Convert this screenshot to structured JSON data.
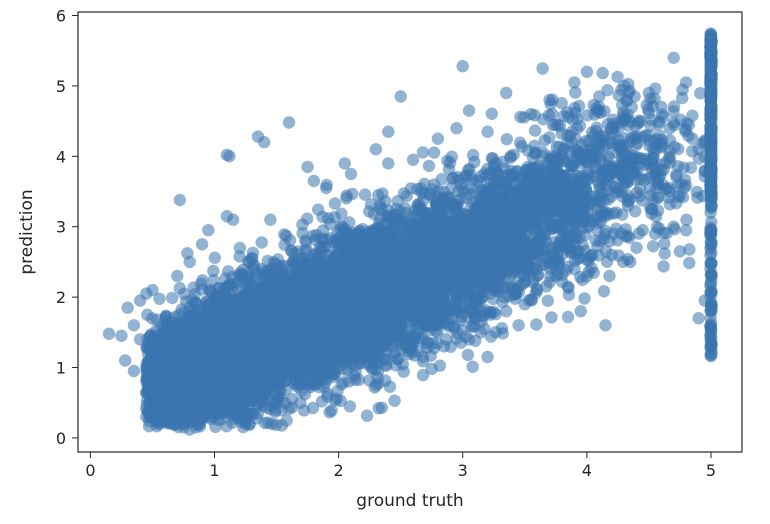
{
  "chart_data": {
    "type": "scatter",
    "title": "",
    "xlabel": "ground truth",
    "ylabel": "prediction",
    "xlim": [
      -0.1,
      5.25
    ],
    "ylim": [
      -0.2,
      6.05
    ],
    "xticks": [
      0,
      1,
      2,
      3,
      4,
      5
    ],
    "yticks": [
      0,
      1,
      2,
      3,
      4,
      5,
      6
    ],
    "grid": false,
    "legend": "none",
    "point_color": "#3a75af",
    "point_alpha": 0.55,
    "series": [
      {
        "points": [
          [
            0.15,
            1.48
          ],
          [
            0.25,
            1.45
          ],
          [
            0.3,
            1.85
          ],
          [
            0.28,
            1.1
          ],
          [
            0.35,
            1.6
          ],
          [
            0.35,
            0.95
          ],
          [
            0.4,
            1.95
          ],
          [
            0.45,
            2.05
          ],
          [
            0.5,
            2.1
          ],
          [
            0.4,
            1.4
          ],
          [
            0.55,
            0.3
          ],
          [
            0.6,
            0.25
          ],
          [
            0.62,
            1.6
          ],
          [
            0.7,
            0.2
          ],
          [
            0.75,
            0.2
          ],
          [
            0.8,
            0.12
          ],
          [
            0.85,
            0.15
          ],
          [
            1.25,
            0.2
          ],
          [
            0.72,
            3.38
          ],
          [
            0.7,
            2.3
          ],
          [
            0.8,
            2.5
          ],
          [
            0.9,
            2.75
          ],
          [
            0.95,
            2.95
          ],
          [
            1.1,
            3.15
          ],
          [
            1.1,
            4.02
          ],
          [
            1.12,
            4.0
          ],
          [
            1.15,
            3.1
          ],
          [
            1.3,
            2.55
          ],
          [
            1.35,
            4.28
          ],
          [
            1.4,
            4.2
          ],
          [
            1.45,
            3.1
          ],
          [
            1.6,
            4.48
          ],
          [
            1.75,
            3.85
          ],
          [
            1.8,
            3.65
          ],
          [
            1.9,
            3.55
          ],
          [
            2.05,
            3.9
          ],
          [
            2.1,
            3.75
          ],
          [
            2.3,
            4.1
          ],
          [
            2.4,
            3.9
          ],
          [
            2.4,
            4.35
          ],
          [
            2.5,
            4.85
          ],
          [
            2.6,
            3.95
          ],
          [
            2.8,
            4.25
          ],
          [
            2.95,
            4.4
          ],
          [
            3.0,
            5.28
          ],
          [
            3.05,
            4.65
          ],
          [
            3.2,
            4.35
          ],
          [
            3.35,
            4.9
          ],
          [
            3.55,
            4.6
          ],
          [
            3.7,
            4.8
          ],
          [
            3.9,
            5.05
          ],
          [
            4.0,
            5.2
          ],
          [
            4.1,
            4.85
          ],
          [
            4.2,
            4.4
          ],
          [
            4.3,
            5.0
          ],
          [
            4.5,
            4.9
          ],
          [
            4.6,
            4.7
          ],
          [
            4.7,
            5.4
          ],
          [
            4.8,
            5.05
          ],
          [
            4.85,
            4.25
          ],
          [
            2.3,
            0.75
          ],
          [
            2.75,
            0.98
          ],
          [
            2.85,
            1.3
          ],
          [
            3.05,
            1.4
          ],
          [
            3.1,
            1.7
          ],
          [
            3.2,
            1.15
          ],
          [
            3.35,
            1.8
          ],
          [
            3.45,
            1.6
          ],
          [
            3.5,
            1.9
          ],
          [
            3.6,
            2.1
          ],
          [
            3.75,
            2.3
          ],
          [
            3.9,
            2.4
          ],
          [
            3.95,
            1.8
          ],
          [
            4.15,
            1.6
          ],
          [
            4.2,
            2.6
          ],
          [
            4.35,
            2.5
          ],
          [
            4.4,
            2.7
          ],
          [
            4.45,
            2.95
          ],
          [
            4.55,
            2.9
          ],
          [
            4.7,
            3.0
          ],
          [
            4.75,
            2.65
          ],
          [
            4.8,
            2.95
          ],
          [
            4.9,
            1.7
          ],
          [
            4.95,
            1.95
          ],
          [
            1.4,
            0.6
          ],
          [
            1.7,
            0.8
          ],
          [
            1.9,
            0.9
          ],
          [
            2.0,
            1.0
          ],
          [
            1.0,
            0.35
          ],
          [
            1.2,
            0.45
          ],
          [
            1.5,
            0.55
          ],
          [
            2.5,
            1.4
          ],
          [
            2.2,
            1.2
          ],
          [
            3.8,
            2.6
          ],
          [
            4.3,
            3.6
          ],
          [
            4.6,
            3.8
          ],
          [
            4.9,
            4.1
          ],
          [
            4.0,
            3.2
          ],
          [
            3.3,
            2.2
          ],
          [
            2.7,
            1.6
          ]
        ],
        "clusters": [
          {
            "cx": 0.7,
            "cy": 0.85,
            "sx": 0.16,
            "sy": 0.3,
            "n": 1800
          },
          {
            "cx": 1.15,
            "cy": 1.2,
            "sx": 0.22,
            "sy": 0.4,
            "n": 2000
          },
          {
            "cx": 1.75,
            "cy": 1.65,
            "sx": 0.3,
            "sy": 0.45,
            "n": 1900
          },
          {
            "cx": 2.4,
            "cy": 2.2,
            "sx": 0.3,
            "sy": 0.45,
            "n": 1500
          },
          {
            "cx": 3.0,
            "cy": 2.7,
            "sx": 0.3,
            "sy": 0.45,
            "n": 1100
          },
          {
            "cx": 3.6,
            "cy": 3.2,
            "sx": 0.3,
            "sy": 0.5,
            "n": 650
          },
          {
            "cx": 4.25,
            "cy": 3.9,
            "sx": 0.35,
            "sy": 0.55,
            "n": 420
          }
        ],
        "column_at_5": {
          "x": 5.0,
          "y_min": 1.15,
          "y_max": 5.75,
          "dense_min": 3.4,
          "n": 320
        }
      }
    ]
  }
}
